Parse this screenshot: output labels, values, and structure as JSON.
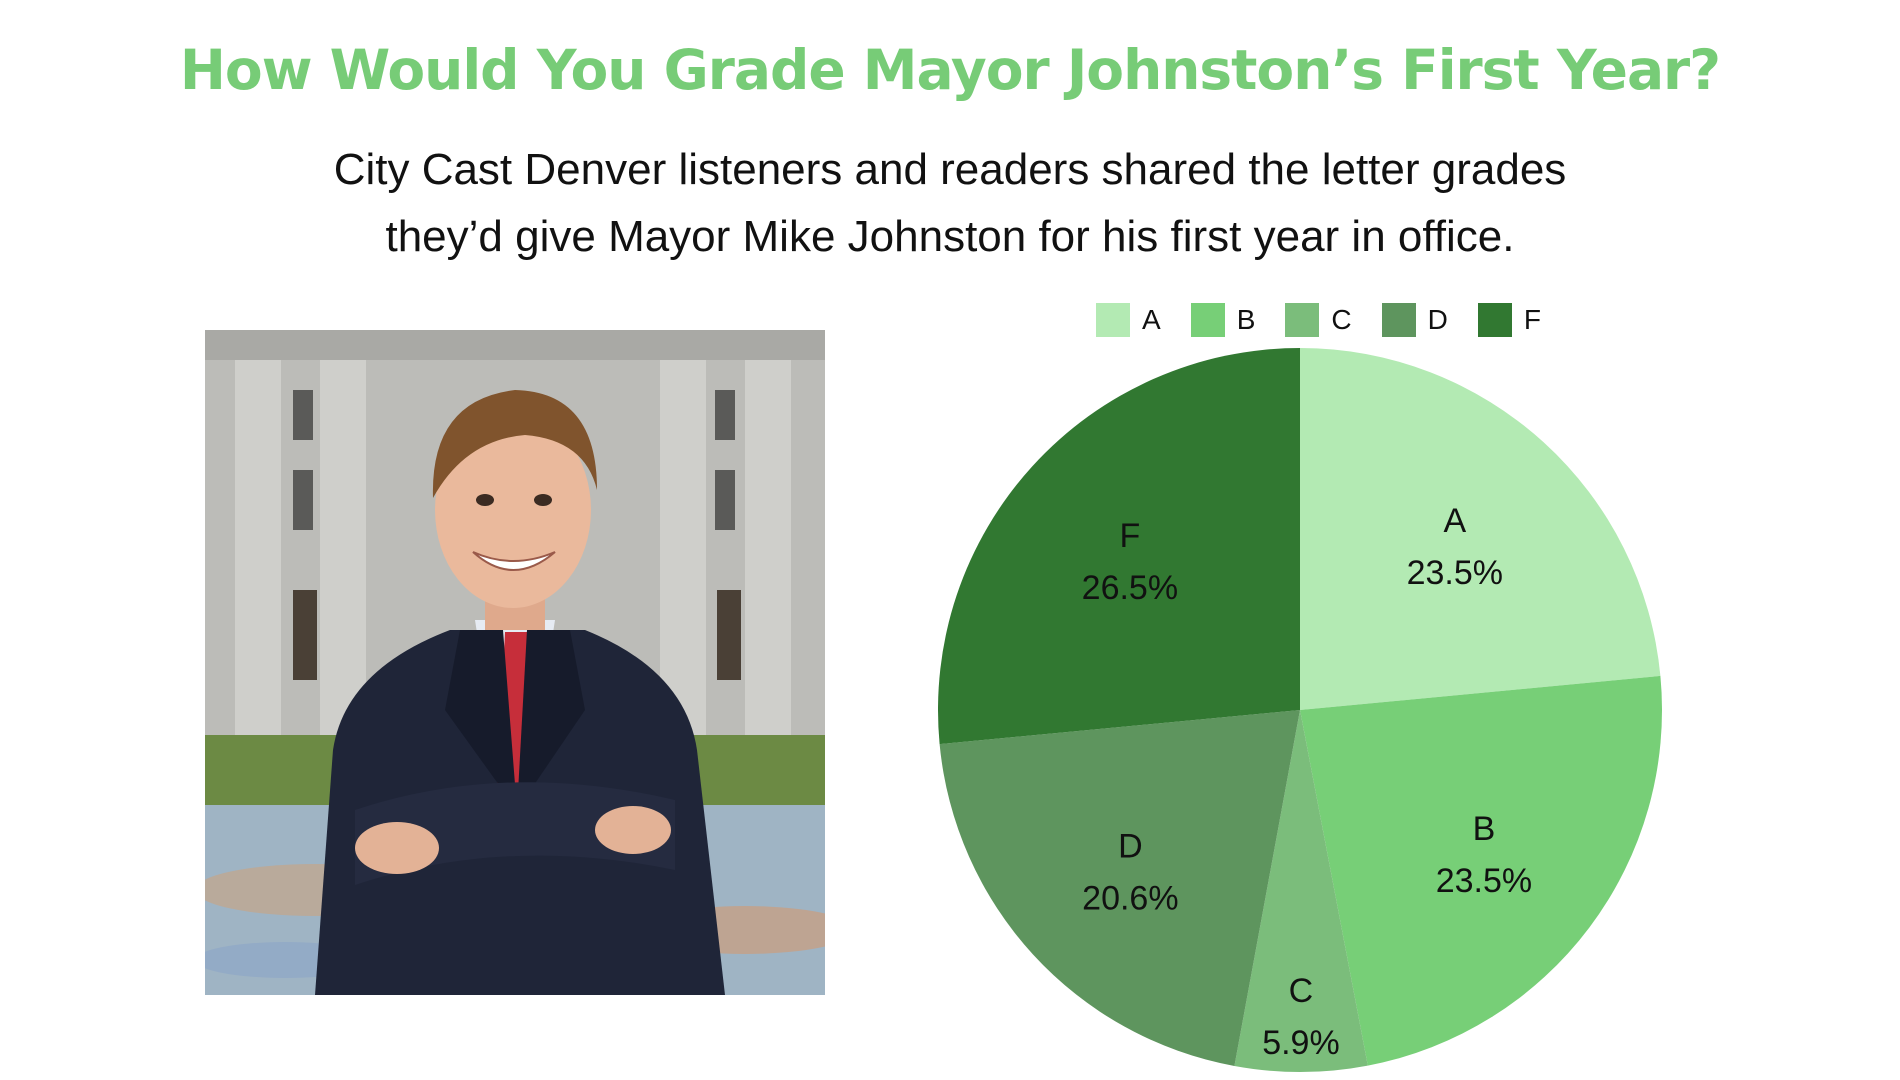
{
  "title": "How Would You Grade Mayor Johnston’s First Year?",
  "title_color": "#77CC77",
  "subtitle_line1": "City Cast Denver listeners and readers shared the letter grades",
  "subtitle_line2": "they’d give Mayor Mike Johnston for his first year in office.",
  "chart_data": {
    "type": "pie",
    "legend_position": "top",
    "start": "12 o'clock, clockwise",
    "slices": [
      {
        "label": "A",
        "value": 23.5,
        "value_label": "23.5%",
        "color": "#B3EAB3"
      },
      {
        "label": "B",
        "value": 23.5,
        "value_label": "23.5%",
        "color": "#77CF77"
      },
      {
        "label": "C",
        "value": 5.9,
        "value_label": "5.9%",
        "color": "#7BBD7B"
      },
      {
        "label": "D",
        "value": 20.6,
        "value_label": "20.6%",
        "color": "#5E955E"
      },
      {
        "label": "F",
        "value": 26.5,
        "value_label": "26.5%",
        "color": "#317831"
      }
    ]
  }
}
